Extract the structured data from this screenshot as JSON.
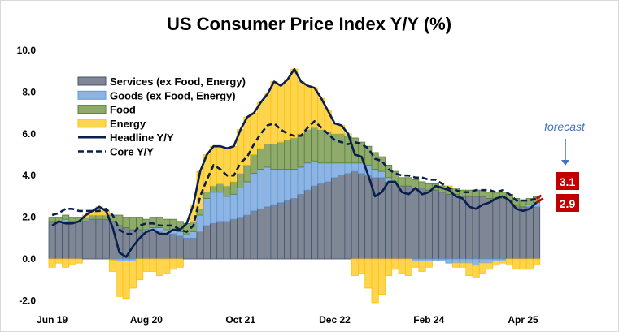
{
  "chart_data": {
    "type": "bar",
    "stacked": true,
    "title": "US Consumer Price Index Y/Y (%)",
    "xlabel": "",
    "ylabel": "",
    "ylim": [
      -2,
      10
    ],
    "yticks": [
      "10.0",
      "8.0",
      "6.0",
      "4.0",
      "2.0",
      "0.0",
      "-2.0"
    ],
    "xtick_labels": [
      {
        "label": "Jun 19",
        "index": 0
      },
      {
        "label": "Aug 20",
        "index": 14
      },
      {
        "label": "Oct 21",
        "index": 28
      },
      {
        "label": "Dec 22",
        "index": 42
      },
      {
        "label": "Feb 24",
        "index": 56
      },
      {
        "label": "Apr 25",
        "index": 70
      }
    ],
    "grid": false,
    "legend_position": "top-left",
    "x_start": "Jun 2019",
    "x_end": "Jun 2025",
    "series": [
      {
        "name": "Services (ex Food, Energy)",
        "kind": "bar",
        "color": "#7f8796",
        "stroke": "#44546a",
        "values": [
          1.8,
          1.8,
          1.8,
          1.8,
          1.8,
          1.8,
          1.9,
          1.9,
          1.9,
          1.8,
          1.6,
          1.5,
          1.4,
          1.4,
          1.3,
          1.3,
          1.3,
          1.2,
          1.2,
          1.1,
          1.0,
          1.0,
          1.3,
          1.6,
          1.7,
          1.8,
          1.8,
          1.9,
          2.0,
          2.1,
          2.3,
          2.4,
          2.5,
          2.6,
          2.7,
          2.8,
          2.9,
          3.1,
          3.3,
          3.5,
          3.6,
          3.7,
          3.9,
          4.0,
          4.1,
          4.2,
          4.1,
          4.0,
          3.9,
          3.9,
          3.7,
          3.6,
          3.5,
          3.5,
          3.4,
          3.4,
          3.3,
          3.3,
          3.2,
          3.1,
          3.1,
          3.0,
          3.0,
          3.0,
          3.0,
          2.9,
          2.9,
          2.9,
          2.8,
          2.6,
          2.5,
          2.5,
          2.5
        ]
      },
      {
        "name": "Goods (ex Food, Energy)",
        "kind": "bar",
        "color": "#8db4e2",
        "stroke": "#5b9bd5",
        "values": [
          0,
          0,
          0.1,
          0,
          0,
          0,
          0,
          0,
          0,
          -0.05,
          -0.1,
          -0.1,
          -0.1,
          0,
          0.1,
          0.2,
          0.2,
          0.2,
          0.2,
          0.2,
          0.2,
          0.3,
          0.8,
          1.3,
          1.5,
          1.4,
          1.2,
          1.2,
          1.4,
          1.6,
          1.8,
          1.9,
          1.9,
          1.7,
          1.6,
          1.5,
          1.4,
          1.3,
          1.3,
          1.2,
          1.0,
          0.9,
          0.7,
          0.6,
          0.5,
          0.4,
          0.5,
          0.5,
          0.4,
          0.3,
          0.2,
          0.1,
          0,
          0,
          -0.1,
          -0.1,
          -0.1,
          -0.1,
          -0.1,
          -0.2,
          -0.2,
          -0.2,
          -0.2,
          -0.3,
          -0.2,
          -0.2,
          -0.1,
          -0.1,
          0,
          0,
          0,
          0.1,
          0.2
        ]
      },
      {
        "name": "Food",
        "kind": "bar",
        "color": "#8faa6b",
        "stroke": "#548235",
        "values": [
          0.2,
          0.2,
          0.2,
          0.2,
          0.2,
          0.2,
          0.2,
          0.2,
          0.2,
          0.3,
          0.5,
          0.5,
          0.6,
          0.6,
          0.5,
          0.5,
          0.5,
          0.5,
          0.5,
          0.5,
          0.5,
          0.5,
          0.3,
          0.3,
          0.3,
          0.4,
          0.5,
          0.6,
          0.7,
          0.8,
          0.9,
          1.0,
          1.1,
          1.2,
          1.3,
          1.4,
          1.5,
          1.6,
          1.6,
          1.6,
          1.6,
          1.5,
          1.4,
          1.4,
          1.3,
          1.2,
          1.0,
          0.9,
          0.8,
          0.7,
          0.6,
          0.5,
          0.4,
          0.4,
          0.4,
          0.3,
          0.3,
          0.3,
          0.3,
          0.3,
          0.3,
          0.3,
          0.3,
          0.3,
          0.3,
          0.3,
          0.3,
          0.3,
          0.3,
          0.3,
          0.3,
          0.3,
          0.3
        ]
      },
      {
        "name": "Energy",
        "kind": "bar",
        "color": "#ffd54f",
        "stroke": "#ffc000",
        "values": [
          -0.4,
          -0.2,
          -0.4,
          -0.3,
          -0.2,
          0.1,
          0.2,
          0.4,
          0.2,
          -0.55,
          -1.7,
          -1.8,
          -1.3,
          -1.0,
          -0.6,
          -0.6,
          -0.8,
          -0.7,
          -0.5,
          -0.4,
          0,
          0.8,
          1.8,
          1.8,
          1.9,
          1.8,
          1.8,
          1.7,
          2.1,
          2.3,
          2.0,
          2.2,
          2.4,
          3.0,
          2.7,
          2.9,
          3.3,
          2.5,
          2.1,
          1.9,
          1.5,
          1.0,
          0.5,
          0.4,
          0.1,
          -0.8,
          -0.7,
          -1.4,
          -2.1,
          -1.7,
          -0.8,
          -0.5,
          -0.7,
          -0.8,
          -0.3,
          -0.5,
          -0.3,
          0,
          0,
          0.1,
          -0.2,
          -0.2,
          -0.6,
          -0.6,
          -0.5,
          -0.3,
          -0.2,
          -0.1,
          -0.3,
          -0.5,
          -0.5,
          -0.5,
          -0.3
        ]
      },
      {
        "name": "Headline Y/Y",
        "kind": "line",
        "style": "solid",
        "color": "#0b1f4e",
        "values": [
          1.6,
          1.8,
          1.7,
          1.7,
          1.8,
          2.1,
          2.3,
          2.5,
          2.3,
          1.5,
          0.3,
          0.1,
          0.6,
          1.0,
          1.3,
          1.4,
          1.2,
          1.2,
          1.4,
          1.4,
          1.7,
          2.6,
          4.2,
          5.0,
          5.4,
          5.4,
          5.3,
          5.4,
          6.2,
          6.8,
          7.0,
          7.5,
          7.9,
          8.5,
          8.3,
          8.6,
          9.1,
          8.5,
          8.3,
          8.2,
          7.7,
          7.1,
          6.5,
          6.4,
          6.0,
          5.0,
          4.9,
          4.0,
          3.0,
          3.2,
          3.7,
          3.7,
          3.2,
          3.1,
          3.4,
          3.1,
          3.2,
          3.5,
          3.4,
          3.3,
          3.0,
          2.9,
          2.5,
          2.4,
          2.6,
          2.7,
          2.9,
          3.0,
          2.8,
          2.4,
          2.3,
          2.4,
          2.7
        ]
      },
      {
        "name": "Core Y/Y",
        "kind": "line",
        "style": "dashed",
        "color": "#0b1f4e",
        "values": [
          2.1,
          2.2,
          2.4,
          2.4,
          2.3,
          2.3,
          2.3,
          2.3,
          2.4,
          2.1,
          1.4,
          1.2,
          1.2,
          1.6,
          1.7,
          1.7,
          1.6,
          1.6,
          1.6,
          1.4,
          1.3,
          1.6,
          3.0,
          3.8,
          4.5,
          4.3,
          4.0,
          4.0,
          4.6,
          4.9,
          5.5,
          6.0,
          6.4,
          6.5,
          6.2,
          6.0,
          5.9,
          5.9,
          6.3,
          6.6,
          6.3,
          6.0,
          5.7,
          5.6,
          5.5,
          5.6,
          5.5,
          5.3,
          4.8,
          4.7,
          4.3,
          4.1,
          4.0,
          4.0,
          3.9,
          3.9,
          3.8,
          3.8,
          3.6,
          3.4,
          3.3,
          3.2,
          3.2,
          3.3,
          3.3,
          3.3,
          3.2,
          3.3,
          3.1,
          2.8,
          2.8,
          2.8,
          2.9
        ]
      }
    ],
    "forecast": {
      "label": "forecast",
      "color": "#c00000",
      "headline_value": 2.9,
      "core_value": 3.1,
      "headline_label": "2.9",
      "core_label": "3.1"
    }
  }
}
